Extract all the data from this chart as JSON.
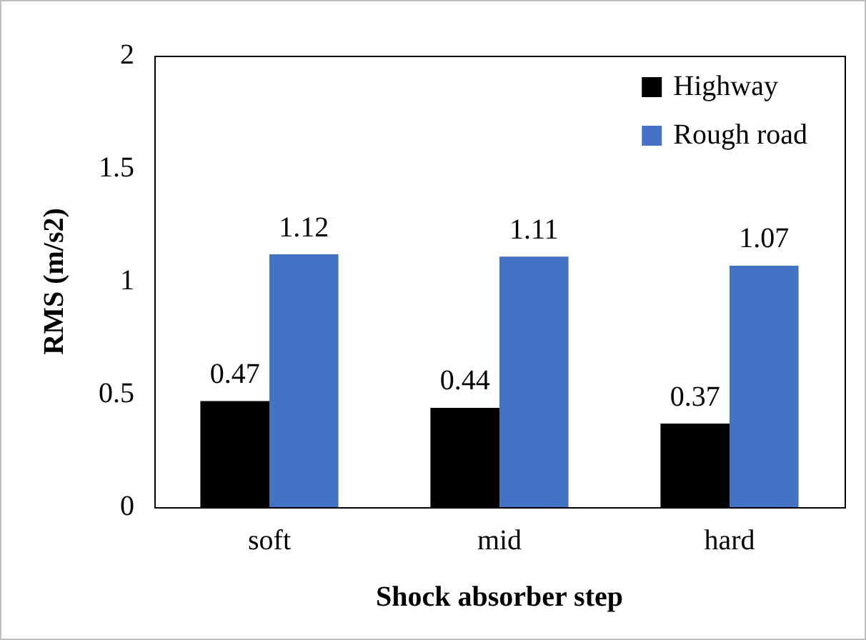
{
  "chart_data": {
    "type": "bar",
    "xlabel": "Shock absorber step",
    "ylabel": "RMS (m/s2)",
    "categories": [
      "soft",
      "mid",
      "hard"
    ],
    "series": [
      {
        "name": "Highway",
        "color": "#000000",
        "values": [
          0.47,
          0.44,
          0.37
        ]
      },
      {
        "name": "Rough road",
        "color": "#4472c4",
        "values": [
          1.12,
          1.11,
          1.07
        ]
      }
    ],
    "ylim": [
      0,
      2
    ],
    "yticks": [
      0,
      0.5,
      1,
      1.5,
      2
    ],
    "grid": false,
    "legend": "top right",
    "data_labels": true
  }
}
